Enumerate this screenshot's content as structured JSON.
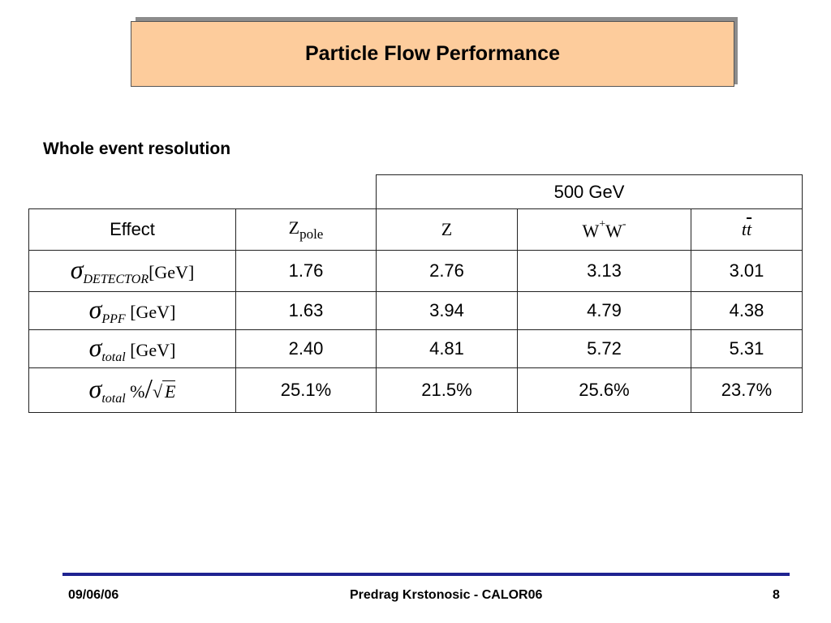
{
  "title": "Particle Flow Performance",
  "subtitle": "Whole event resolution",
  "table": {
    "energy_header": "500 GeV",
    "effect_header": "Effect",
    "col_headers": {
      "zpole_main": "Z",
      "zpole_sub": "pole",
      "z": "Z",
      "ww_w1": "W",
      "ww_sup1": "+",
      "ww_w2": "W",
      "ww_sup2": "-",
      "tt_t1": "t",
      "tt_t2": "t"
    },
    "row_labels": {
      "sigma": "σ",
      "detector_sub": "DETECTOR",
      "ppf_sub": "PPF",
      "total_sub": "total",
      "gev_unit": "[GeV]",
      "percent": "%",
      "sqrt_sym": "√",
      "sqrt_e": "E"
    },
    "rows": [
      {
        "values": [
          "1.76",
          "2.76",
          "3.13",
          "3.01"
        ]
      },
      {
        "values": [
          "1.63",
          "3.94",
          "4.79",
          "4.38"
        ]
      },
      {
        "values": [
          "2.40",
          "4.81",
          "5.72",
          "5.31"
        ]
      },
      {
        "values": [
          "25.1%",
          "21.5%",
          "25.6%",
          "23.7%"
        ]
      }
    ]
  },
  "footer": {
    "date": "09/06/06",
    "author": "Predrag Krstonosic -  CALOR06",
    "page": "8"
  },
  "colors": {
    "title_fill": "#fdcc9c",
    "footer_rule": "#1f2391"
  }
}
